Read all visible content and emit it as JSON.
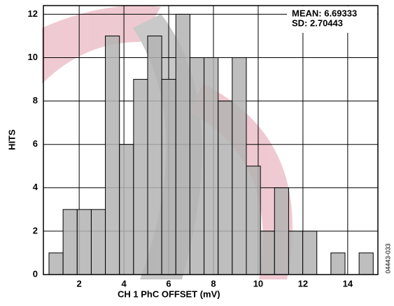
{
  "chart_data": {
    "type": "histogram",
    "x_label": "CH 1 PhC OFFSET (mV)",
    "y_label": "HITS",
    "annotations": [
      "MEAN: 6.69333",
      "SD: 2.70443"
    ],
    "figure_id": "04443-033",
    "bins": [
      0.65,
      1.28,
      1.91,
      2.54,
      3.17,
      3.8,
      4.43,
      5.06,
      5.69,
      6.32,
      6.95,
      7.58,
      8.21,
      8.84,
      9.47,
      10.1,
      10.73,
      11.36,
      11.99,
      12.62,
      13.25,
      13.88,
      14.51,
      15.14
    ],
    "values": [
      1,
      3,
      3,
      3,
      11,
      6,
      9,
      11,
      9,
      12,
      10,
      10,
      8,
      10,
      5,
      2,
      4,
      2,
      2,
      0,
      1,
      0,
      1
    ],
    "color": "#b3b3b3",
    "xlim": [
      0.4,
      15.35
    ],
    "ylim": [
      0,
      12.4
    ],
    "xticks": [
      2,
      4,
      6,
      8,
      10,
      12,
      14
    ],
    "yticks": [
      0,
      2,
      4,
      6,
      8,
      10,
      12
    ],
    "grid": true
  }
}
